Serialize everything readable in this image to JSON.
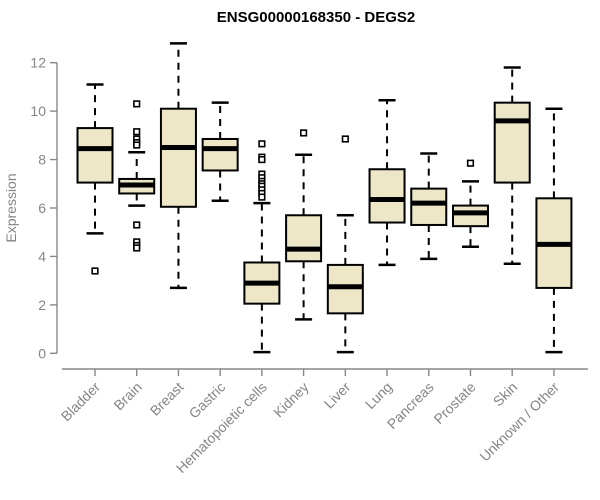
{
  "chart_data": {
    "type": "boxplot",
    "title": "ENSG00000168350 - DEGS2",
    "ylabel": "Expression",
    "xlabel": "",
    "ylim": [
      0,
      12
    ],
    "yticks": [
      0,
      2,
      4,
      6,
      8,
      10,
      12
    ],
    "grid": false,
    "legend": "none",
    "colors": {
      "box_fill": "#EDE7C7",
      "box_stroke": "#000000",
      "median": "#000000",
      "axis": "#888888",
      "tick_text": "#858585",
      "title_text": "#000000",
      "outlier_fill": "#ffffff",
      "background": "#ffffff"
    },
    "categories": [
      "Bladder",
      "Brain",
      "Breast",
      "Gastric",
      "Hematopoietic cells",
      "Kidney",
      "Liver",
      "Lung",
      "Pancreas",
      "Prostate",
      "Skin",
      "Unknown / Other"
    ],
    "boxes": [
      {
        "category": "Bladder",
        "whisker_low": 4.95,
        "q1": 7.05,
        "median": 8.45,
        "q3": 9.3,
        "whisker_high": 11.1,
        "outliers": [
          3.4
        ]
      },
      {
        "category": "Brain",
        "whisker_low": 6.1,
        "q1": 6.6,
        "median": 6.95,
        "q3": 7.2,
        "whisker_high": 8.3,
        "outliers": [
          10.3,
          9.15,
          8.85,
          8.7,
          8.6,
          5.3,
          4.6,
          4.45,
          4.35
        ]
      },
      {
        "category": "Breast",
        "whisker_low": 2.7,
        "q1": 6.05,
        "median": 8.5,
        "q3": 10.1,
        "whisker_high": 12.8,
        "outliers": []
      },
      {
        "category": "Gastric",
        "whisker_low": 6.3,
        "q1": 7.55,
        "median": 8.45,
        "q3": 8.85,
        "whisker_high": 10.35,
        "outliers": []
      },
      {
        "category": "Hematopoietic cells",
        "whisker_low": 0.05,
        "q1": 2.05,
        "median": 2.9,
        "q3": 3.75,
        "whisker_high": 6.2,
        "outliers": [
          8.65,
          8.1,
          8.0,
          7.4,
          7.25,
          7.1,
          7.0,
          6.9,
          6.75,
          6.6,
          6.45
        ]
      },
      {
        "category": "Kidney",
        "whisker_low": 1.4,
        "q1": 3.8,
        "median": 4.3,
        "q3": 5.7,
        "whisker_high": 8.2,
        "outliers": [
          9.1
        ]
      },
      {
        "category": "Liver",
        "whisker_low": 0.05,
        "q1": 1.65,
        "median": 2.75,
        "q3": 3.65,
        "whisker_high": 5.7,
        "outliers": [
          8.85
        ]
      },
      {
        "category": "Lung",
        "whisker_low": 3.65,
        "q1": 5.4,
        "median": 6.35,
        "q3": 7.6,
        "whisker_high": 10.45,
        "outliers": []
      },
      {
        "category": "Pancreas",
        "whisker_low": 3.9,
        "q1": 5.3,
        "median": 6.2,
        "q3": 6.8,
        "whisker_high": 8.25,
        "outliers": []
      },
      {
        "category": "Prostate",
        "whisker_low": 4.4,
        "q1": 5.25,
        "median": 5.8,
        "q3": 6.1,
        "whisker_high": 7.1,
        "outliers": [
          7.85
        ]
      },
      {
        "category": "Skin",
        "whisker_low": 3.7,
        "q1": 7.05,
        "median": 9.6,
        "q3": 10.35,
        "whisker_high": 11.8,
        "outliers": []
      },
      {
        "category": "Unknown / Other",
        "whisker_low": 0.05,
        "q1": 2.7,
        "median": 4.5,
        "q3": 6.4,
        "whisker_high": 10.1,
        "outliers": []
      }
    ]
  }
}
